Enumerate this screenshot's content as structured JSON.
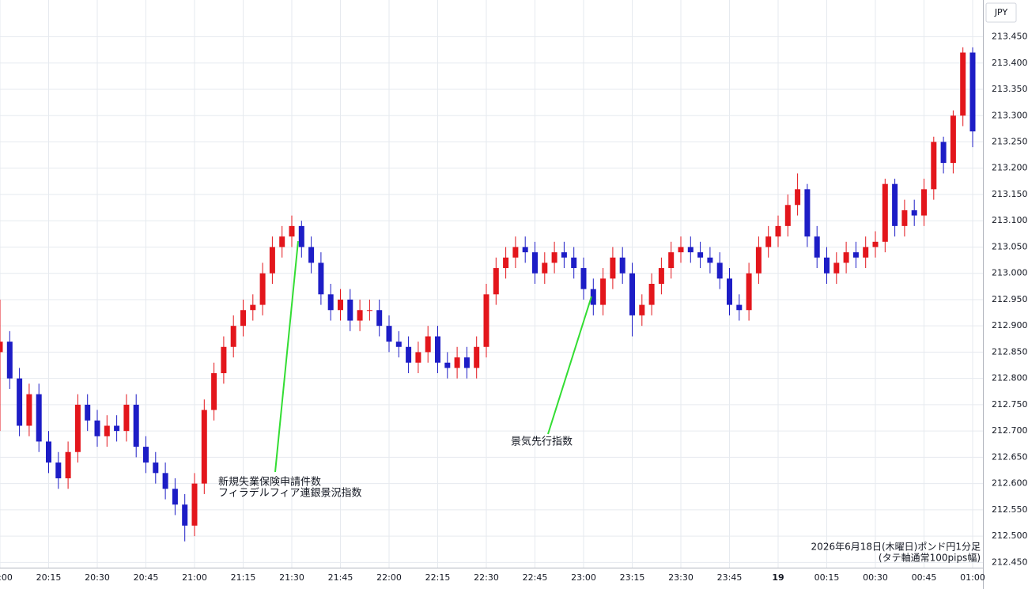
{
  "chart_data": {
    "type": "candlestick",
    "y_axis_label": "JPY",
    "caption": [
      "2026年6月18日(木曜日)ポンド円1分足",
      "(タテ軸通常100pips幅)"
    ],
    "annotations": [
      "新規失業保険申請件数",
      "フィラデルフィア連銀景況指数",
      "景気先行指数"
    ],
    "up_color": "#e3161c",
    "down_color": "#1d1dc6",
    "grid": true,
    "ylim": [
      212.44,
      213.52
    ],
    "yticks": [
      {
        "value": 212.45,
        "label": "212.450"
      },
      {
        "value": 212.5,
        "label": "212.500"
      },
      {
        "value": 212.55,
        "label": "212.550"
      },
      {
        "value": 212.6,
        "label": "212.600"
      },
      {
        "value": 212.65,
        "label": "212.650"
      },
      {
        "value": 212.7,
        "label": "212.700"
      },
      {
        "value": 212.75,
        "label": "212.750"
      },
      {
        "value": 212.8,
        "label": "212.800"
      },
      {
        "value": 212.85,
        "label": "212.850"
      },
      {
        "value": 212.9,
        "label": "212.900"
      },
      {
        "value": 212.95,
        "label": "212.950"
      },
      {
        "value": 213,
        "label": "213.000"
      },
      {
        "value": 213.05,
        "label": "213.050"
      },
      {
        "value": 213.1,
        "label": "213.100"
      },
      {
        "value": 213.15,
        "label": "213.150"
      },
      {
        "value": 213.2,
        "label": "213.200"
      },
      {
        "value": 213.25,
        "label": "213.250"
      },
      {
        "value": 213.3,
        "label": "213.300"
      },
      {
        "value": 213.35,
        "label": "213.350"
      },
      {
        "value": 213.4,
        "label": "213.400"
      },
      {
        "value": 213.45,
        "label": "213.450"
      }
    ],
    "xticks": [
      "20:00",
      "20:15",
      "20:30",
      "20:45",
      "21:00",
      "21:15",
      "21:30",
      "21:45",
      "22:00",
      "22:15",
      "22:30",
      "22:45",
      "23:00",
      "23:15",
      "23:30",
      "23:45",
      {
        "value": "00:00",
        "label": "19"
      },
      "00:15",
      "00:30",
      "00:45",
      "01:00"
    ],
    "x": [
      "20:00",
      "20:03",
      "20:06",
      "20:09",
      "20:12",
      "20:15",
      "20:18",
      "20:21",
      "20:24",
      "20:27",
      "20:30",
      "20:33",
      "20:36",
      "20:39",
      "20:42",
      "20:45",
      "20:48",
      "20:51",
      "20:54",
      "20:57",
      "21:00",
      "21:03",
      "21:06",
      "21:09",
      "21:12",
      "21:15",
      "21:18",
      "21:21",
      "21:24",
      "21:27",
      "21:30",
      "21:33",
      "21:36",
      "21:39",
      "21:42",
      "21:45",
      "21:48",
      "21:51",
      "21:54",
      "21:57",
      "22:00",
      "22:03",
      "22:06",
      "22:09",
      "22:12",
      "22:15",
      "22:18",
      "22:21",
      "22:24",
      "22:27",
      "22:30",
      "22:33",
      "22:36",
      "22:39",
      "22:42",
      "22:45",
      "22:48",
      "22:51",
      "22:54",
      "22:57",
      "23:00",
      "23:03",
      "23:06",
      "23:09",
      "23:12",
      "23:15",
      "23:18",
      "23:21",
      "23:24",
      "23:27",
      "23:30",
      "23:33",
      "23:36",
      "23:39",
      "23:42",
      "23:45",
      "23:48",
      "23:51",
      "23:54",
      "23:57",
      "00:00",
      "00:03",
      "00:06",
      "00:09",
      "00:12",
      "00:15",
      "00:18",
      "00:21",
      "00:24",
      "00:27",
      "00:30",
      "00:33",
      "00:36",
      "00:39",
      "00:42",
      "00:45",
      "00:48",
      "00:51",
      "00:54",
      "00:57",
      "01:00"
    ],
    "open": [
      212.85,
      212.87,
      212.8,
      212.71,
      212.77,
      212.68,
      212.64,
      212.61,
      212.66,
      212.75,
      212.72,
      212.69,
      212.71,
      212.7,
      212.75,
      212.67,
      212.64,
      212.62,
      212.59,
      212.56,
      212.52,
      212.6,
      212.74,
      212.81,
      212.86,
      212.9,
      212.93,
      212.94,
      213.0,
      213.05,
      213.07,
      213.09,
      213.05,
      213.02,
      212.96,
      212.93,
      212.95,
      212.91,
      212.93,
      212.93,
      212.9,
      212.87,
      212.86,
      212.83,
      212.85,
      212.88,
      212.83,
      212.82,
      212.84,
      212.82,
      212.86,
      212.96,
      213.01,
      213.03,
      213.05,
      213.04,
      213.0,
      213.02,
      213.04,
      213.03,
      213.01,
      212.97,
      212.94,
      212.99,
      213.03,
      213.0,
      212.92,
      212.94,
      212.98,
      213.01,
      213.04,
      213.05,
      213.04,
      213.03,
      213.02,
      212.99,
      212.94,
      212.93,
      213.0,
      213.05,
      213.07,
      213.09,
      213.13,
      213.16,
      213.07,
      213.03,
      213.0,
      213.02,
      213.04,
      213.03,
      213.05,
      213.06,
      213.17,
      213.09,
      213.12,
      213.11,
      213.16,
      213.25,
      213.21,
      213.3,
      213.42
    ],
    "high": [
      212.95,
      212.89,
      212.82,
      212.79,
      212.79,
      212.7,
      212.66,
      212.68,
      212.77,
      212.77,
      212.74,
      212.73,
      212.73,
      212.77,
      212.77,
      212.69,
      212.66,
      212.64,
      212.61,
      212.58,
      212.62,
      212.76,
      212.83,
      212.88,
      212.92,
      212.95,
      212.96,
      213.02,
      213.07,
      213.09,
      213.11,
      213.1,
      213.07,
      213.04,
      212.98,
      212.97,
      212.97,
      212.95,
      212.95,
      212.95,
      212.92,
      212.89,
      212.88,
      212.87,
      212.9,
      212.9,
      212.85,
      212.86,
      212.86,
      212.88,
      212.98,
      213.03,
      213.05,
      213.07,
      213.07,
      213.06,
      213.04,
      213.06,
      213.06,
      213.05,
      213.03,
      212.99,
      213.01,
      213.05,
      213.05,
      213.02,
      212.96,
      213.0,
      213.03,
      213.06,
      213.07,
      213.07,
      213.06,
      213.05,
      213.04,
      213.01,
      212.96,
      213.02,
      213.07,
      213.09,
      213.11,
      213.15,
      213.19,
      213.17,
      213.09,
      213.05,
      213.04,
      213.06,
      213.06,
      213.07,
      213.08,
      213.18,
      213.18,
      213.14,
      213.14,
      213.18,
      213.26,
      213.26,
      213.31,
      213.43,
      213.43
    ],
    "low": [
      212.7,
      212.78,
      212.69,
      212.69,
      212.66,
      212.62,
      212.59,
      212.59,
      212.64,
      212.7,
      212.67,
      212.67,
      212.68,
      212.68,
      212.65,
      212.62,
      212.6,
      212.57,
      212.54,
      212.49,
      212.5,
      212.58,
      212.72,
      212.79,
      212.84,
      212.88,
      212.91,
      212.92,
      212.98,
      213.03,
      213.05,
      213.03,
      213.0,
      212.94,
      212.91,
      212.91,
      212.89,
      212.89,
      212.91,
      212.88,
      212.85,
      212.84,
      212.81,
      212.81,
      212.83,
      212.81,
      212.8,
      212.8,
      212.8,
      212.8,
      212.84,
      212.94,
      212.99,
      213.01,
      213.02,
      212.98,
      212.98,
      213.0,
      213.01,
      212.99,
      212.95,
      212.92,
      212.92,
      212.97,
      212.98,
      212.88,
      212.9,
      212.92,
      212.96,
      212.99,
      213.02,
      213.02,
      213.01,
      213.0,
      212.97,
      212.92,
      212.91,
      212.91,
      212.98,
      213.03,
      213.05,
      213.07,
      213.11,
      213.05,
      213.01,
      212.98,
      212.98,
      213.0,
      213.01,
      213.01,
      213.03,
      213.04,
      213.07,
      213.07,
      213.09,
      213.09,
      213.14,
      213.19,
      213.19,
      213.28,
      213.24
    ],
    "close": [
      212.87,
      212.8,
      212.71,
      212.77,
      212.68,
      212.64,
      212.61,
      212.66,
      212.75,
      212.72,
      212.69,
      212.71,
      212.7,
      212.75,
      212.67,
      212.64,
      212.62,
      212.59,
      212.56,
      212.52,
      212.6,
      212.74,
      212.81,
      212.86,
      212.9,
      212.93,
      212.94,
      213.0,
      213.05,
      213.07,
      213.09,
      213.05,
      213.02,
      212.96,
      212.93,
      212.95,
      212.91,
      212.93,
      212.93,
      212.9,
      212.87,
      212.86,
      212.83,
      212.85,
      212.88,
      212.83,
      212.82,
      212.84,
      212.82,
      212.86,
      212.96,
      213.01,
      213.03,
      213.05,
      213.04,
      213.0,
      213.02,
      213.04,
      213.03,
      213.01,
      212.97,
      212.94,
      212.99,
      213.03,
      213.0,
      212.92,
      212.94,
      212.98,
      213.01,
      213.04,
      213.05,
      213.04,
      213.03,
      213.02,
      212.99,
      212.94,
      212.93,
      213.0,
      213.05,
      213.07,
      213.09,
      213.13,
      213.16,
      213.07,
      213.03,
      213.0,
      213.02,
      213.04,
      213.03,
      213.05,
      213.06,
      213.17,
      213.09,
      213.12,
      213.11,
      213.16,
      213.25,
      213.21,
      213.3,
      213.42,
      213.27
    ]
  }
}
